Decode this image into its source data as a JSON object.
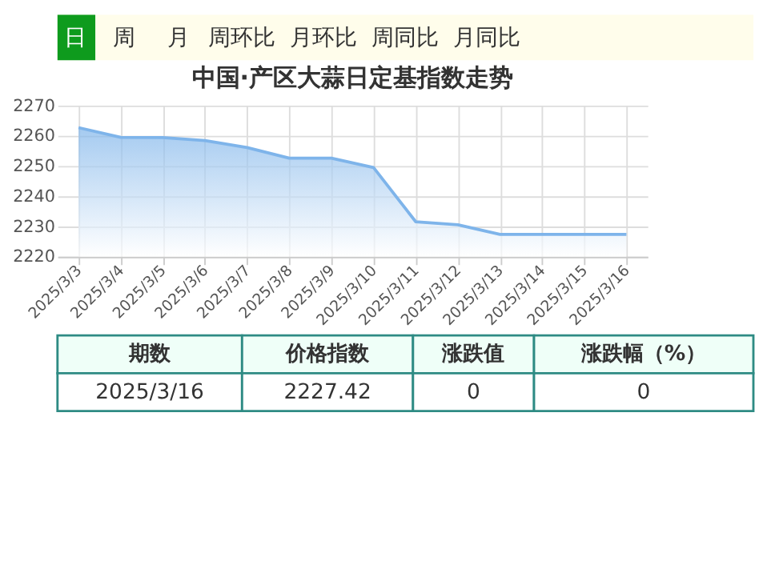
{
  "chart_data": {
    "type": "area",
    "title": "中国·产区大蒜日定基指数走势",
    "categories": [
      "2025/3/3",
      "2025/3/4",
      "2025/3/5",
      "2025/3/6",
      "2025/3/7",
      "2025/3/8",
      "2025/3/9",
      "2025/3/10",
      "2025/3/11",
      "2025/3/12",
      "2025/3/13",
      "2025/3/14",
      "2025/3/15",
      "2025/3/16"
    ],
    "series": [
      {
        "color": "#7eb4ea",
        "values": [
          2262.7,
          2259.5,
          2259.4,
          2258.4,
          2256.1,
          2252.6,
          2252.6,
          2249.5,
          2231.6,
          2230.6,
          2227.4,
          2227.4,
          2227.4,
          2227.42
        ]
      }
    ],
    "ylim": [
      2220,
      2270
    ],
    "yticks": [
      2220,
      2230,
      2240,
      2250,
      2260,
      2270
    ],
    "grid": true,
    "marker": "none",
    "annotations": [
      "日",
      "周",
      "月",
      "周环比",
      "月环比",
      "周同比",
      "月同比",
      "期数",
      "价格指数",
      "涨跌值",
      "涨跌幅（%）",
      "2025/3/16",
      "2227.42",
      "0",
      "0"
    ]
  }
}
